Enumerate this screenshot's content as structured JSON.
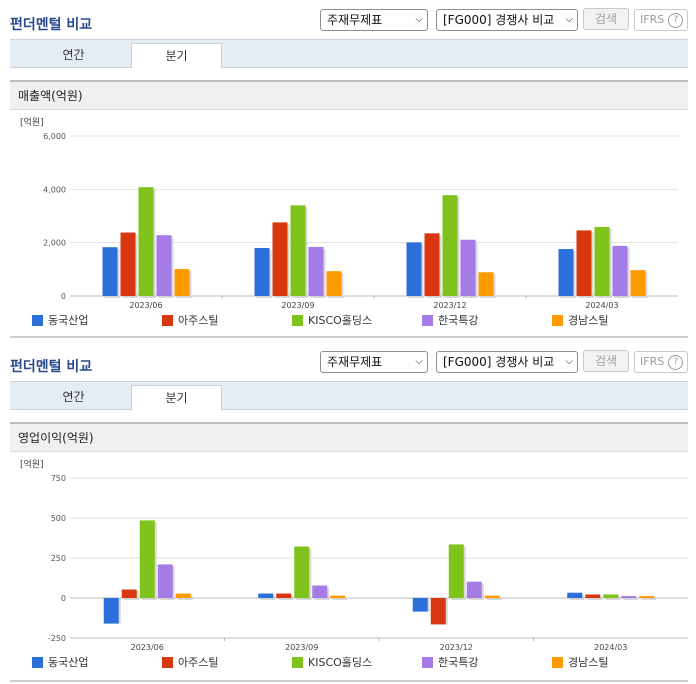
{
  "sections": [
    {
      "title": "펀더멘털 비교",
      "select_statement": "주재무제표",
      "select_compare": "[FG000] 경쟁사 비교",
      "search_label": "검색",
      "ifrs_label": "IFRS",
      "help_glyph": "?",
      "tabs": [
        {
          "label": "연간",
          "active": false
        },
        {
          "label": "분기",
          "active": true
        }
      ],
      "chart_title": "매출액(억원)"
    },
    {
      "title": "펀더멘털 비교",
      "select_statement": "주재무제표",
      "select_compare": "[FG000] 경쟁사 비교",
      "search_label": "검색",
      "ifrs_label": "IFRS",
      "help_glyph": "?",
      "tabs": [
        {
          "label": "연간",
          "active": false
        },
        {
          "label": "분기",
          "active": true
        }
      ],
      "chart_title": "영업이익(억원)"
    }
  ],
  "chart_data": [
    {
      "type": "bar",
      "unit": "[억원]",
      "categories": [
        "2023/06",
        "2023/09",
        "2023/12",
        "2024/03"
      ],
      "ylim": [
        0,
        6000
      ],
      "yticks": [
        0,
        2000,
        4000,
        6000
      ],
      "ytick_labels": [
        "0",
        "2,000",
        "4,000",
        "6,000"
      ],
      "grid": true,
      "legend_position": "bottom",
      "series": [
        {
          "name": "동국산업",
          "color": "#2b6fdb",
          "values": [
            1830,
            1800,
            2010,
            1760
          ]
        },
        {
          "name": "아주스틸",
          "color": "#d8380f",
          "values": [
            2380,
            2760,
            2350,
            2460
          ]
        },
        {
          "name": "KISCO홀딩스",
          "color": "#7fc31c",
          "values": [
            4080,
            3400,
            3780,
            2590
          ]
        },
        {
          "name": "한국특강",
          "color": "#a57be6",
          "values": [
            2280,
            1840,
            2110,
            1880
          ]
        },
        {
          "name": "경남스틸",
          "color": "#ff9a00",
          "values": [
            1010,
            930,
            890,
            970
          ]
        }
      ]
    },
    {
      "type": "bar",
      "unit": "[억원]",
      "categories": [
        "2023/06",
        "2023/09",
        "2023/12",
        "2024/03"
      ],
      "ylim": [
        -250,
        750
      ],
      "yticks": [
        -250,
        0,
        250,
        500,
        750
      ],
      "ytick_labels": [
        "-250",
        "0",
        "250",
        "500",
        "750"
      ],
      "grid": true,
      "legend_position": "bottom",
      "series": [
        {
          "name": "동국산업",
          "color": "#2b6fdb",
          "values": [
            -160,
            28,
            -85,
            33
          ]
        },
        {
          "name": "아주스틸",
          "color": "#d8380f",
          "values": [
            53,
            28,
            -165,
            22
          ]
        },
        {
          "name": "KISCO홀딩스",
          "color": "#7fc31c",
          "values": [
            485,
            322,
            335,
            22
          ]
        },
        {
          "name": "한국특강",
          "color": "#a57be6",
          "values": [
            210,
            78,
            102,
            12
          ]
        },
        {
          "name": "경남스틸",
          "color": "#ff9a00",
          "values": [
            28,
            15,
            15,
            12
          ]
        }
      ]
    }
  ]
}
